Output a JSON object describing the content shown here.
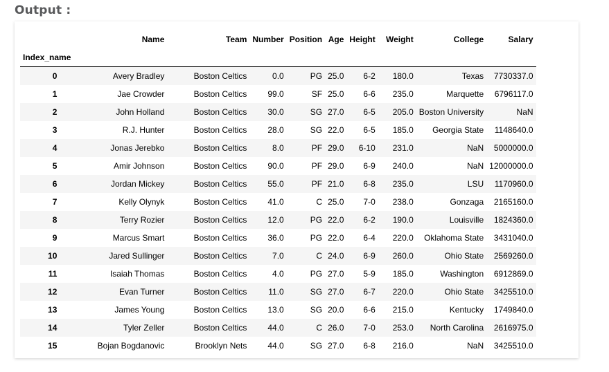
{
  "output_label": "Output :",
  "index_name": "Index_name",
  "columns": [
    "Name",
    "Team",
    "Number",
    "Position",
    "Age",
    "Height",
    "Weight",
    "College",
    "Salary"
  ],
  "rows": [
    [
      "0",
      "Avery Bradley",
      "Boston Celtics",
      "0.0",
      "PG",
      "25.0",
      "6-2",
      "180.0",
      "Texas",
      "7730337.0"
    ],
    [
      "1",
      "Jae Crowder",
      "Boston Celtics",
      "99.0",
      "SF",
      "25.0",
      "6-6",
      "235.0",
      "Marquette",
      "6796117.0"
    ],
    [
      "2",
      "John Holland",
      "Boston Celtics",
      "30.0",
      "SG",
      "27.0",
      "6-5",
      "205.0",
      "Boston University",
      "NaN"
    ],
    [
      "3",
      "R.J. Hunter",
      "Boston Celtics",
      "28.0",
      "SG",
      "22.0",
      "6-5",
      "185.0",
      "Georgia State",
      "1148640.0"
    ],
    [
      "4",
      "Jonas Jerebko",
      "Boston Celtics",
      "8.0",
      "PF",
      "29.0",
      "6-10",
      "231.0",
      "NaN",
      "5000000.0"
    ],
    [
      "5",
      "Amir Johnson",
      "Boston Celtics",
      "90.0",
      "PF",
      "29.0",
      "6-9",
      "240.0",
      "NaN",
      "12000000.0"
    ],
    [
      "6",
      "Jordan Mickey",
      "Boston Celtics",
      "55.0",
      "PF",
      "21.0",
      "6-8",
      "235.0",
      "LSU",
      "1170960.0"
    ],
    [
      "7",
      "Kelly Olynyk",
      "Boston Celtics",
      "41.0",
      "C",
      "25.0",
      "7-0",
      "238.0",
      "Gonzaga",
      "2165160.0"
    ],
    [
      "8",
      "Terry Rozier",
      "Boston Celtics",
      "12.0",
      "PG",
      "22.0",
      "6-2",
      "190.0",
      "Louisville",
      "1824360.0"
    ],
    [
      "9",
      "Marcus Smart",
      "Boston Celtics",
      "36.0",
      "PG",
      "22.0",
      "6-4",
      "220.0",
      "Oklahoma State",
      "3431040.0"
    ],
    [
      "10",
      "Jared Sullinger",
      "Boston Celtics",
      "7.0",
      "C",
      "24.0",
      "6-9",
      "260.0",
      "Ohio State",
      "2569260.0"
    ],
    [
      "11",
      "Isaiah Thomas",
      "Boston Celtics",
      "4.0",
      "PG",
      "27.0",
      "5-9",
      "185.0",
      "Washington",
      "6912869.0"
    ],
    [
      "12",
      "Evan Turner",
      "Boston Celtics",
      "11.0",
      "SG",
      "27.0",
      "6-7",
      "220.0",
      "Ohio State",
      "3425510.0"
    ],
    [
      "13",
      "James Young",
      "Boston Celtics",
      "13.0",
      "SG",
      "20.0",
      "6-6",
      "215.0",
      "Kentucky",
      "1749840.0"
    ],
    [
      "14",
      "Tyler Zeller",
      "Boston Celtics",
      "44.0",
      "C",
      "26.0",
      "7-0",
      "253.0",
      "North Carolina",
      "2616975.0"
    ],
    [
      "15",
      "Bojan Bogdanovic",
      "Brooklyn Nets",
      "44.0",
      "SG",
      "27.0",
      "6-8",
      "216.0",
      "NaN",
      "3425510.0"
    ]
  ]
}
